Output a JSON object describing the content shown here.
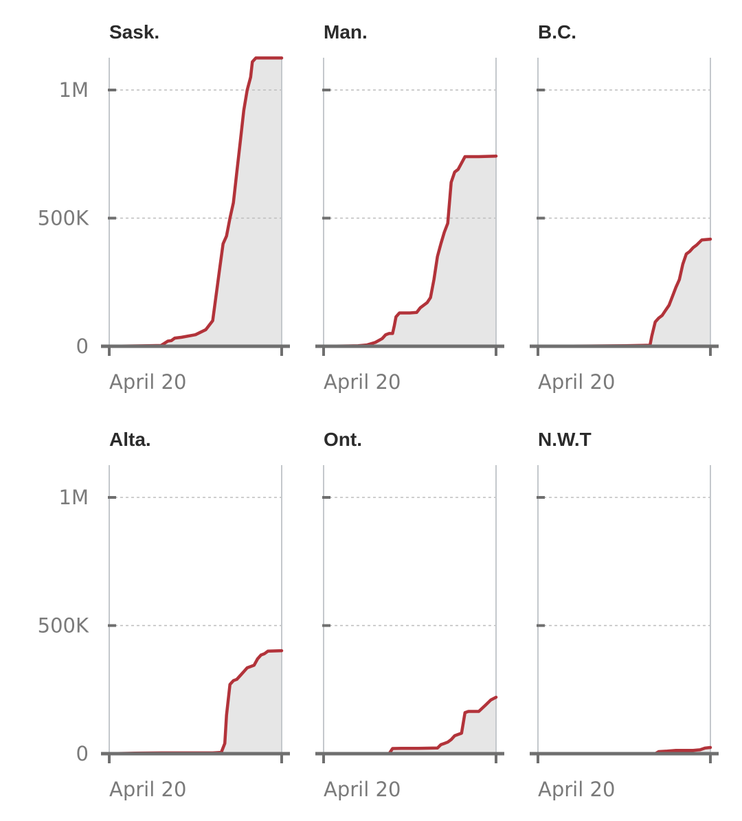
{
  "colors": {
    "line": "#b2333a",
    "area": "#e6e6e6",
    "grid": "#bdbdbd",
    "axis": "#6f6f6f",
    "edge": "#c4c8cc"
  },
  "chart_data": {
    "type": "area",
    "layout": "small-multiples",
    "grid": true,
    "ylim": [
      0,
      1130000
    ],
    "y_ticks": [
      {
        "value": 0,
        "label": "0"
      },
      {
        "value": 500000,
        "label": "500K"
      },
      {
        "value": 1000000,
        "label": "1M"
      }
    ],
    "x_range": [
      0,
      1
    ],
    "x_ticks": [
      0,
      1
    ],
    "x_tick_label": "April 20",
    "series": [
      {
        "name": "Sask.",
        "points": [
          [
            0,
            0
          ],
          [
            0.22,
            2000
          ],
          [
            0.3,
            3000
          ],
          [
            0.34,
            20000
          ],
          [
            0.36,
            22000
          ],
          [
            0.38,
            32000
          ],
          [
            0.42,
            35000
          ],
          [
            0.5,
            45000
          ],
          [
            0.56,
            65000
          ],
          [
            0.6,
            100000
          ],
          [
            0.62,
            200000
          ],
          [
            0.64,
            300000
          ],
          [
            0.66,
            400000
          ],
          [
            0.68,
            430000
          ],
          [
            0.7,
            500000
          ],
          [
            0.72,
            560000
          ],
          [
            0.74,
            680000
          ],
          [
            0.76,
            800000
          ],
          [
            0.78,
            920000
          ],
          [
            0.8,
            1000000
          ],
          [
            0.82,
            1050000
          ],
          [
            0.83,
            1110000
          ],
          [
            0.85,
            1125000
          ],
          [
            0.9,
            1125000
          ],
          [
            1,
            1125000
          ]
        ]
      },
      {
        "name": "Man.",
        "points": [
          [
            0,
            0
          ],
          [
            0.2,
            2000
          ],
          [
            0.25,
            5000
          ],
          [
            0.3,
            15000
          ],
          [
            0.34,
            30000
          ],
          [
            0.36,
            45000
          ],
          [
            0.38,
            50000
          ],
          [
            0.4,
            50000
          ],
          [
            0.41,
            80000
          ],
          [
            0.42,
            115000
          ],
          [
            0.44,
            130000
          ],
          [
            0.5,
            130000
          ],
          [
            0.54,
            132000
          ],
          [
            0.56,
            150000
          ],
          [
            0.6,
            170000
          ],
          [
            0.62,
            190000
          ],
          [
            0.64,
            260000
          ],
          [
            0.66,
            350000
          ],
          [
            0.68,
            400000
          ],
          [
            0.7,
            445000
          ],
          [
            0.72,
            480000
          ],
          [
            0.73,
            560000
          ],
          [
            0.74,
            640000
          ],
          [
            0.76,
            680000
          ],
          [
            0.78,
            690000
          ],
          [
            0.8,
            715000
          ],
          [
            0.82,
            740000
          ],
          [
            0.9,
            740000
          ],
          [
            1,
            742000
          ]
        ]
      },
      {
        "name": "B.C.",
        "points": [
          [
            0,
            0
          ],
          [
            0.3,
            1000
          ],
          [
            0.5,
            2000
          ],
          [
            0.65,
            4000
          ],
          [
            0.66,
            40000
          ],
          [
            0.68,
            95000
          ],
          [
            0.7,
            110000
          ],
          [
            0.72,
            120000
          ],
          [
            0.74,
            140000
          ],
          [
            0.76,
            160000
          ],
          [
            0.78,
            195000
          ],
          [
            0.8,
            230000
          ],
          [
            0.82,
            260000
          ],
          [
            0.84,
            320000
          ],
          [
            0.86,
            360000
          ],
          [
            0.88,
            370000
          ],
          [
            0.9,
            385000
          ],
          [
            0.92,
            395000
          ],
          [
            0.95,
            415000
          ],
          [
            1,
            418000
          ]
        ]
      },
      {
        "name": "Alta.",
        "points": [
          [
            0,
            0
          ],
          [
            0.15,
            2000
          ],
          [
            0.3,
            3000
          ],
          [
            0.45,
            3000
          ],
          [
            0.6,
            3000
          ],
          [
            0.65,
            5000
          ],
          [
            0.67,
            40000
          ],
          [
            0.68,
            150000
          ],
          [
            0.7,
            270000
          ],
          [
            0.72,
            285000
          ],
          [
            0.74,
            290000
          ],
          [
            0.76,
            305000
          ],
          [
            0.78,
            320000
          ],
          [
            0.8,
            335000
          ],
          [
            0.84,
            345000
          ],
          [
            0.86,
            370000
          ],
          [
            0.88,
            385000
          ],
          [
            0.9,
            390000
          ],
          [
            0.92,
            400000
          ],
          [
            1,
            402000
          ]
        ]
      },
      {
        "name": "Ont.",
        "points": [
          [
            0,
            0
          ],
          [
            0.2,
            0
          ],
          [
            0.38,
            0
          ],
          [
            0.4,
            20000
          ],
          [
            0.45,
            21000
          ],
          [
            0.55,
            21000
          ],
          [
            0.66,
            22000
          ],
          [
            0.68,
            35000
          ],
          [
            0.7,
            40000
          ],
          [
            0.72,
            45000
          ],
          [
            0.74,
            55000
          ],
          [
            0.76,
            70000
          ],
          [
            0.78,
            75000
          ],
          [
            0.8,
            80000
          ],
          [
            0.82,
            160000
          ],
          [
            0.84,
            165000
          ],
          [
            0.9,
            165000
          ],
          [
            0.94,
            190000
          ],
          [
            0.97,
            210000
          ],
          [
            1,
            220000
          ]
        ]
      },
      {
        "name": "N.W.T",
        "points": [
          [
            0,
            0
          ],
          [
            0.4,
            0
          ],
          [
            0.68,
            0
          ],
          [
            0.7,
            8000
          ],
          [
            0.75,
            10000
          ],
          [
            0.8,
            13000
          ],
          [
            0.9,
            13000
          ],
          [
            0.94,
            15000
          ],
          [
            0.97,
            22000
          ],
          [
            1,
            24000
          ]
        ]
      }
    ]
  },
  "panels": [
    {
      "title": "Sask."
    },
    {
      "title": "Man."
    },
    {
      "title": "B.C."
    },
    {
      "title": "Alta."
    },
    {
      "title": "Ont."
    },
    {
      "title": "N.W.T"
    }
  ]
}
